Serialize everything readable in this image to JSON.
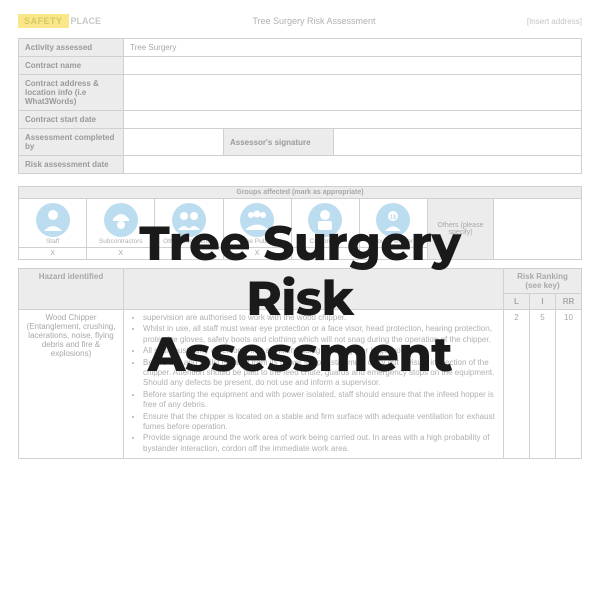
{
  "logo": {
    "badge": "SAFETY",
    "text": "PLACE"
  },
  "header": {
    "title": "Tree Surgery Risk Assessment",
    "address": "[Insert address]"
  },
  "meta": {
    "activity_label": "Activity assessed",
    "activity_value": "Tree Surgery",
    "contract_name_label": "Contract name",
    "contract_addr_label": "Contract address & location info (i.e What3Words)",
    "start_date_label": "Contract start date",
    "completed_by_label": "Assessment completed by",
    "signature_label": "Assessor's signature",
    "date_label": "Risk assessment date"
  },
  "groups": {
    "header": "Groups affected (mark as appropriate)",
    "items": [
      {
        "label": "Staff",
        "mark": "X"
      },
      {
        "label": "Subcontractors",
        "mark": "X"
      },
      {
        "label": "Other Contractors",
        "mark": ""
      },
      {
        "label": "The Public",
        "mark": "X"
      },
      {
        "label": "Customers",
        "mark": ""
      },
      {
        "label": "Young worker",
        "mark": ""
      }
    ],
    "others_label": "Others (please specify)"
  },
  "hazard": {
    "header_hazard": "Hazard identified",
    "header_risk": "Risk Ranking (see key)",
    "header_l": "L",
    "header_i": "I",
    "header_rr": "RR",
    "name": "Wood Chipper (Entanglement, crushing, lacerations, noise, flying debris and fire & explosions)",
    "controls": [
      "supervision are authorised to work with the wood chipper.",
      "Whilst in use, all staff must wear eye protection or a face visor, head protection, hearing protection, protective gloves, safety boots and clothing which will not snag during the operation of the chipper.",
      "All staff must carry a personal first aid kit including dressings for large wounds.",
      "Before use and whilst isolated from its power supply, staff must carry out a visual inspection of the chipper.  Attention should be paid to the feed chute, guards and emergency stops on the equipment. Should any defects be present, do not use and inform a supervisor.",
      "Before starting the equipment and with power isolated, staff should ensure that the infeed hopper is free of any debris.",
      "Ensure that the chipper is located on a stable and firm surface with adequate ventilation for exhaust fumes before operation.",
      "Provide signage around the work area of work being carried out. In areas with a high probability of bystander interaction, cordon off the immediate work area."
    ],
    "L": "2",
    "I": "5",
    "RR": "10"
  },
  "overlay": {
    "line1": "Tree Surgery",
    "line2": "Risk",
    "line3": "Assessment"
  },
  "colors": {
    "logo_badge_bg": "#f9e78a",
    "pictogram_bg": "#bcdcf0",
    "overlay_text": "#1a1a1a",
    "border": "#d0d0d0",
    "faded_text": "#b0b0b0",
    "header_bg": "#ececec"
  }
}
